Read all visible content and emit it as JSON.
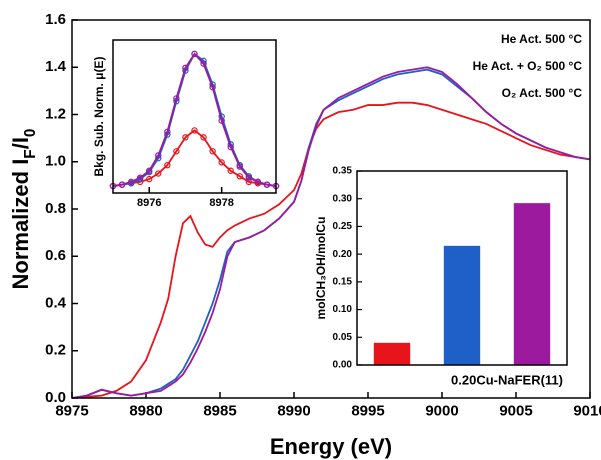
{
  "chart_data": [
    {
      "type": "line",
      "x_label": "Energy (eV)",
      "y_label": [
        {
          "text": "Normalized I"
        },
        {
          "text": "F",
          "sub": true
        },
        {
          "text": "/I"
        },
        {
          "text": "0",
          "sub": true
        }
      ],
      "xlim": [
        8975,
        9010
      ],
      "xticks": [
        8975,
        8980,
        8985,
        8990,
        8995,
        9000,
        9005,
        9010
      ],
      "ylim": [
        0,
        1.6
      ],
      "yticks": [
        {
          "value": 0,
          "label": "0.0"
        },
        0.2,
        0.4,
        0.6,
        0.8,
        {
          "value": 1,
          "label": "1.0"
        },
        1.2,
        1.4,
        1.6
      ],
      "legend": "upper right",
      "x": [
        8975,
        8976,
        8977,
        8978,
        8979,
        8980,
        8981,
        8981.5,
        8982,
        8982.5,
        8983,
        8983.5,
        8984,
        8984.5,
        8985,
        8985.5,
        8986,
        8987,
        8988,
        8989,
        8990,
        8990.5,
        8991,
        8991.5,
        8992,
        8993,
        8994,
        8995,
        8996,
        8997,
        8998,
        8999,
        9000,
        9001,
        9002,
        9003,
        9004,
        9005,
        9006,
        9007,
        9008,
        9009,
        9010
      ],
      "series": [
        {
          "name": "He Act. 500 °C",
          "color": "#e8141c",
          "values": [
            0,
            0.005,
            0.01,
            0.03,
            0.07,
            0.16,
            0.32,
            0.42,
            0.6,
            0.74,
            0.77,
            0.7,
            0.65,
            0.64,
            0.68,
            0.71,
            0.73,
            0.76,
            0.78,
            0.82,
            0.88,
            0.95,
            1.06,
            1.14,
            1.18,
            1.21,
            1.22,
            1.24,
            1.24,
            1.25,
            1.25,
            1.24,
            1.22,
            1.2,
            1.18,
            1.16,
            1.13,
            1.1,
            1.07,
            1.05,
            1.03,
            1.02,
            1.01
          ]
        },
        {
          "name": "He Act. + O₂ 500 °C",
          "color": "#1f5fc8",
          "values": [
            0,
            0.01,
            0.035,
            0.02,
            0.01,
            0.02,
            0.04,
            0.06,
            0.08,
            0.12,
            0.18,
            0.24,
            0.32,
            0.4,
            0.5,
            0.62,
            0.66,
            0.68,
            0.71,
            0.76,
            0.83,
            0.92,
            1.06,
            1.16,
            1.22,
            1.26,
            1.29,
            1.32,
            1.35,
            1.37,
            1.38,
            1.39,
            1.37,
            1.32,
            1.27,
            1.21,
            1.16,
            1.12,
            1.09,
            1.06,
            1.04,
            1.02,
            1.01
          ]
        },
        {
          "name": "O₂ Act. 500 °C",
          "color": "#9b1a9e",
          "values": [
            0,
            0.01,
            0.035,
            0.02,
            0.01,
            0.02,
            0.03,
            0.05,
            0.07,
            0.1,
            0.15,
            0.21,
            0.28,
            0.36,
            0.46,
            0.6,
            0.66,
            0.68,
            0.71,
            0.76,
            0.83,
            0.92,
            1.05,
            1.15,
            1.22,
            1.27,
            1.3,
            1.33,
            1.36,
            1.38,
            1.39,
            1.4,
            1.38,
            1.33,
            1.27,
            1.21,
            1.16,
            1.12,
            1.09,
            1.06,
            1.04,
            1.02,
            1.01
          ]
        }
      ]
    },
    {
      "type": "line",
      "y_label": [
        {
          "text": "Bkg. Sub. Norm. μ(E)"
        }
      ],
      "xlim": [
        8975,
        8979.5
      ],
      "xticks": [
        8976,
        8978
      ],
      "ylim": [
        0,
        1.1
      ],
      "markers": "open-circle",
      "x": [
        8975,
        8975.25,
        8975.5,
        8975.75,
        8976,
        8976.25,
        8976.5,
        8976.75,
        8977,
        8977.25,
        8977.5,
        8977.75,
        8978,
        8978.25,
        8978.5,
        8978.75,
        8979,
        8979.25,
        8979.5
      ],
      "series": [
        {
          "color": "#e8141c",
          "values": [
            0.05,
            0.06,
            0.07,
            0.08,
            0.1,
            0.14,
            0.2,
            0.3,
            0.4,
            0.45,
            0.4,
            0.3,
            0.22,
            0.16,
            0.12,
            0.08,
            0.07,
            0.06,
            0.05
          ]
        },
        {
          "color": "#1f5fc8",
          "values": [
            0.05,
            0.06,
            0.07,
            0.1,
            0.15,
            0.25,
            0.42,
            0.66,
            0.88,
            1.0,
            0.95,
            0.78,
            0.55,
            0.35,
            0.2,
            0.12,
            0.08,
            0.06,
            0.05
          ]
        },
        {
          "color": "#9b1a9e",
          "values": [
            0.05,
            0.06,
            0.08,
            0.11,
            0.16,
            0.27,
            0.44,
            0.68,
            0.9,
            1.0,
            0.93,
            0.76,
            0.52,
            0.33,
            0.19,
            0.11,
            0.08,
            0.06,
            0.05
          ]
        }
      ]
    },
    {
      "type": "bar",
      "y_label": [
        {
          "text": "molCH₃OH/molCu"
        }
      ],
      "annotation": "0.20Cu-NaFER(11)",
      "categories": [
        null,
        null,
        null
      ],
      "values": [
        0.04,
        0.215,
        0.292
      ],
      "colors": [
        "#e8141c",
        "#1f5fc8",
        "#9b1a9e"
      ],
      "ylim": [
        0,
        0.35
      ],
      "yticks": [
        {
          "value": 0,
          "label": "0.00"
        },
        0.05,
        {
          "value": 0.1,
          "label": "0.10"
        },
        0.15,
        {
          "value": 0.2,
          "label": "0.20"
        },
        0.25,
        {
          "value": 0.3,
          "label": "0.30"
        },
        0.35
      ]
    }
  ]
}
